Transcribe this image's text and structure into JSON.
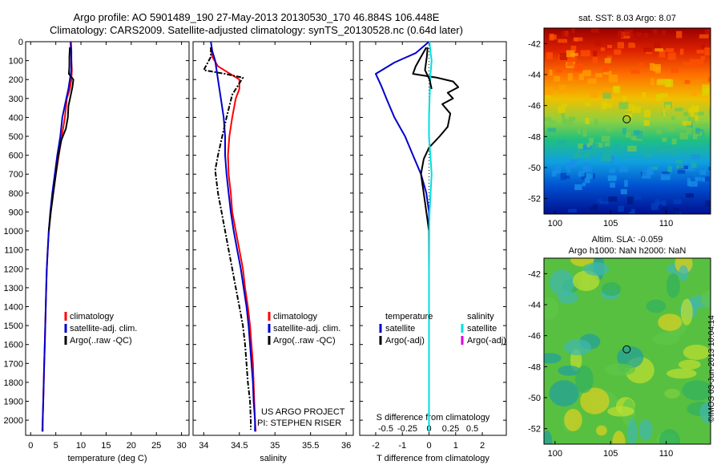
{
  "title_line1": "Argo profile: AO 5901489_190 27-May-2013 20130530_170 46.884S 106.448E",
  "title_line2": "Climatology: CARS2009. Satellite-adjusted climatology: synTS_20130528.nc (0.64d later)",
  "depth_ticks": [
    0,
    100,
    200,
    300,
    400,
    500,
    600,
    700,
    800,
    900,
    1000,
    1100,
    1200,
    1300,
    1400,
    1500,
    1600,
    1700,
    1800,
    1900,
    2000
  ],
  "depth_range": [
    0,
    2080
  ],
  "chart_data": [
    {
      "type": "line",
      "xlabel": "temperature (deg C)",
      "xlim": [
        -1,
        31.5
      ],
      "xticks": [
        0,
        5,
        10,
        15,
        20,
        25,
        30
      ],
      "legend": [
        "climatology",
        "satellite-adj. clim.",
        "Argo(..raw -QC)"
      ],
      "series": [
        {
          "name": "climatology",
          "color": "#ff0000",
          "points": [
            [
              7.9,
              0
            ],
            [
              8,
              50
            ],
            [
              8.1,
              100
            ],
            [
              8.2,
              150
            ],
            [
              8.1,
              200
            ],
            [
              7.8,
              250
            ],
            [
              7.2,
              300
            ],
            [
              6.8,
              400
            ],
            [
              6.2,
              500
            ],
            [
              5.6,
              600
            ],
            [
              5,
              700
            ],
            [
              4.5,
              800
            ],
            [
              4,
              900
            ],
            [
              3.6,
              1000
            ],
            [
              3.4,
              1100
            ],
            [
              3.2,
              1200
            ],
            [
              3.1,
              1300
            ],
            [
              3,
              1400
            ],
            [
              2.9,
              1500
            ],
            [
              2.8,
              1600
            ],
            [
              2.7,
              1700
            ],
            [
              2.6,
              1800
            ],
            [
              2.5,
              1900
            ],
            [
              2.4,
              2000
            ],
            [
              2.3,
              2060
            ]
          ]
        },
        {
          "name": "satellite-adj. clim.",
          "color": "#0000cc",
          "points": [
            [
              8,
              0
            ],
            [
              8.1,
              50
            ],
            [
              8.1,
              100
            ],
            [
              8.1,
              150
            ],
            [
              7.8,
              200
            ],
            [
              7.5,
              250
            ],
            [
              7.1,
              300
            ],
            [
              6.3,
              400
            ],
            [
              5.9,
              500
            ],
            [
              5.3,
              600
            ],
            [
              4.8,
              700
            ],
            [
              4.3,
              800
            ],
            [
              3.9,
              900
            ],
            [
              3.6,
              1000
            ],
            [
              3.4,
              1100
            ],
            [
              3.2,
              1200
            ],
            [
              3.1,
              1300
            ],
            [
              3,
              1400
            ],
            [
              2.9,
              1500
            ],
            [
              2.8,
              1600
            ],
            [
              2.7,
              1700
            ],
            [
              2.6,
              1800
            ],
            [
              2.5,
              1900
            ],
            [
              2.4,
              2000
            ],
            [
              2.4,
              2060
            ]
          ]
        },
        {
          "name": "Argo(..raw -QC)",
          "color": "#000000",
          "points": [
            [
              7.8,
              30
            ],
            [
              7.7,
              80
            ],
            [
              7.7,
              130
            ],
            [
              7.6,
              170
            ],
            [
              8.5,
              200
            ],
            [
              8.3,
              240
            ],
            [
              7.9,
              290
            ],
            [
              7.5,
              340
            ],
            [
              7.4,
              400
            ],
            [
              7,
              460
            ],
            [
              6.1,
              520
            ],
            [
              5.5,
              600
            ],
            [
              5,
              700
            ],
            [
              4.5,
              800
            ],
            [
              4,
              900
            ],
            [
              3.6,
              1000
            ]
          ]
        }
      ]
    },
    {
      "type": "line",
      "xlabel": "salinity",
      "xlim": [
        33.85,
        36.1
      ],
      "xticks": [
        34,
        34.5,
        35,
        35.5,
        36
      ],
      "legend": [
        "climatology",
        "satellite-adj. clim.",
        "Argo(..raw -QC)"
      ],
      "annotation_line1": "US ARGO PROJECT",
      "annotation_line2": "PI: STEPHEN RISER",
      "series": [
        {
          "name": "climatology",
          "color": "#ff0000",
          "points": [
            [
              34.1,
              30
            ],
            [
              34.12,
              80
            ],
            [
              34.2,
              130
            ],
            [
              34.5,
              200
            ],
            [
              34.5,
              250
            ],
            [
              34.45,
              300
            ],
            [
              34.4,
              400
            ],
            [
              34.36,
              500
            ],
            [
              34.34,
              600
            ],
            [
              34.35,
              700
            ],
            [
              34.38,
              800
            ],
            [
              34.4,
              900
            ],
            [
              34.45,
              1000
            ],
            [
              34.5,
              1100
            ],
            [
              34.55,
              1200
            ],
            [
              34.58,
              1300
            ],
            [
              34.62,
              1400
            ],
            [
              34.65,
              1500
            ],
            [
              34.67,
              1600
            ],
            [
              34.69,
              1700
            ],
            [
              34.7,
              1800
            ],
            [
              34.71,
              1900
            ],
            [
              34.72,
              2000
            ],
            [
              34.73,
              2060
            ]
          ]
        },
        {
          "name": "satellite-adj. clim.",
          "color": "#0000cc",
          "points": [
            [
              34.1,
              0
            ],
            [
              34.12,
              50
            ],
            [
              34.16,
              100
            ],
            [
              34.2,
              200
            ],
            [
              34.24,
              300
            ],
            [
              34.28,
              400
            ],
            [
              34.3,
              500
            ],
            [
              34.3,
              600
            ],
            [
              34.32,
              700
            ],
            [
              34.35,
              800
            ],
            [
              34.38,
              900
            ],
            [
              34.42,
              1000
            ],
            [
              34.47,
              1100
            ],
            [
              34.52,
              1200
            ],
            [
              34.56,
              1300
            ],
            [
              34.6,
              1400
            ],
            [
              34.63,
              1500
            ],
            [
              34.65,
              1600
            ],
            [
              34.67,
              1700
            ],
            [
              34.69,
              1800
            ],
            [
              34.7,
              1900
            ],
            [
              34.72,
              2000
            ],
            [
              34.72,
              2060
            ]
          ]
        },
        {
          "name": "Argo(..raw -QC)",
          "color": "#000000",
          "dash": true,
          "points": [
            [
              34.1,
              30
            ],
            [
              34.1,
              80
            ],
            [
              34.0,
              150
            ],
            [
              34.3,
              170
            ],
            [
              34.55,
              190
            ],
            [
              34.5,
              220
            ],
            [
              34.4,
              280
            ],
            [
              34.32,
              400
            ],
            [
              34.26,
              500
            ],
            [
              34.2,
              600
            ],
            [
              34.16,
              680
            ],
            [
              34.2,
              800
            ],
            [
              34.25,
              900
            ],
            [
              34.3,
              1000
            ],
            [
              34.35,
              1100
            ],
            [
              34.4,
              1200
            ],
            [
              34.45,
              1300
            ],
            [
              34.5,
              1400
            ],
            [
              34.55,
              1500
            ],
            [
              34.58,
              1600
            ],
            [
              34.6,
              1700
            ],
            [
              34.62,
              1800
            ],
            [
              34.65,
              1900
            ],
            [
              34.66,
              2000
            ],
            [
              34.66,
              2050
            ]
          ]
        }
      ]
    },
    {
      "type": "line",
      "xlabel": "T difference from climatology",
      "top_label": "S difference from climatology",
      "xlim": [
        -2.6,
        2.9
      ],
      "xticks": [
        -2,
        -1,
        0,
        1,
        2
      ],
      "xticks_top": [
        -0.5,
        -0.25,
        0,
        0.25,
        0.5
      ],
      "legend_title_left": "temperature",
      "legend_title_right": "salinity",
      "legend_left": [
        "satellite",
        "Argo(-adj)"
      ],
      "legend_right": [
        "satellite",
        "Argo(-adj)"
      ],
      "series": [
        {
          "name": "T satellite",
          "color": "#0000cc",
          "points": [
            [
              0,
              0
            ],
            [
              -0.5,
              60
            ],
            [
              -1.3,
              110
            ],
            [
              -2.0,
              170
            ],
            [
              -1.8,
              230
            ],
            [
              -1.6,
              300
            ],
            [
              -1.3,
              400
            ],
            [
              -0.9,
              500
            ],
            [
              -0.6,
              600
            ],
            [
              -0.3,
              700
            ],
            [
              -0.1,
              800
            ],
            [
              0,
              900
            ],
            [
              0,
              1000
            ],
            [
              0,
              1200
            ],
            [
              0,
              1500
            ],
            [
              0,
              1800
            ],
            [
              0,
              2060
            ]
          ]
        },
        {
          "name": "T Argo(-adj)",
          "color": "#000000",
          "points": [
            [
              -0.1,
              30
            ],
            [
              -0.3,
              80
            ],
            [
              -0.5,
              130
            ],
            [
              -0.6,
              170
            ],
            [
              0.3,
              190
            ],
            [
              0.9,
              210
            ],
            [
              1.1,
              240
            ],
            [
              0.7,
              270
            ],
            [
              0.9,
              300
            ],
            [
              0.5,
              330
            ],
            [
              0.8,
              380
            ],
            [
              0.7,
              450
            ],
            [
              0.4,
              500
            ],
            [
              0,
              560
            ],
            [
              -0.2,
              620
            ],
            [
              -0.3,
              700
            ],
            [
              -0.2,
              800
            ],
            [
              -0.1,
              900
            ],
            [
              0,
              1000
            ],
            [
              0,
              1100
            ],
            [
              0,
              1200
            ],
            [
              0,
              1300
            ],
            [
              0,
              1400
            ],
            [
              0,
              1500
            ],
            [
              0,
              1600
            ],
            [
              0,
              1700
            ],
            [
              0,
              1800
            ],
            [
              0,
              1900
            ],
            [
              0,
              2000
            ],
            [
              0,
              2060
            ]
          ]
        },
        {
          "name": "S satellite",
          "color": "#00dddd",
          "points": [
            [
              0.02,
              0
            ],
            [
              0.05,
              50
            ],
            [
              0.1,
              100
            ],
            [
              0.05,
              180
            ],
            [
              0.02,
              300
            ],
            [
              0,
              400
            ],
            [
              0,
              500
            ],
            [
              0.05,
              600
            ],
            [
              0.1,
              700
            ],
            [
              0.06,
              800
            ],
            [
              0.02,
              900
            ],
            [
              0.01,
              1000
            ],
            [
              0,
              1200
            ],
            [
              0,
              1500
            ],
            [
              0,
              1800
            ],
            [
              0,
              2060
            ]
          ]
        },
        {
          "name": "S Argo(-adj)",
          "color": "#000000",
          "points": [
            [
              -0.05,
              30
            ],
            [
              -0.08,
              80
            ],
            [
              -0.15,
              150
            ],
            [
              0.02,
              200
            ],
            [
              0.1,
              250
            ]
          ]
        }
      ]
    }
  ],
  "maps": {
    "sst": {
      "title": "sat. SST: 8.03 Argo: 8.07",
      "yticks": [
        -42,
        -44,
        -46,
        -48,
        -50,
        -52
      ],
      "xticks": [
        100,
        105,
        110
      ],
      "ylim": [
        -53,
        -41
      ],
      "xlim": [
        99,
        114
      ],
      "marker": [
        106.448,
        -46.884
      ]
    },
    "sla": {
      "title_line1": "Altim. SLA: -0.059",
      "title_line2": "Argo h1000: NaN h2000: NaN",
      "yticks": [
        -42,
        -44,
        -46,
        -48,
        -50,
        -52
      ],
      "xticks": [
        100,
        105,
        110
      ],
      "ylim": [
        -53,
        -41
      ],
      "xlim": [
        99,
        114
      ],
      "marker": [
        106.448,
        -46.884
      ]
    }
  },
  "side_label": "©IMOS 03-Jun-2013 10:04:14"
}
